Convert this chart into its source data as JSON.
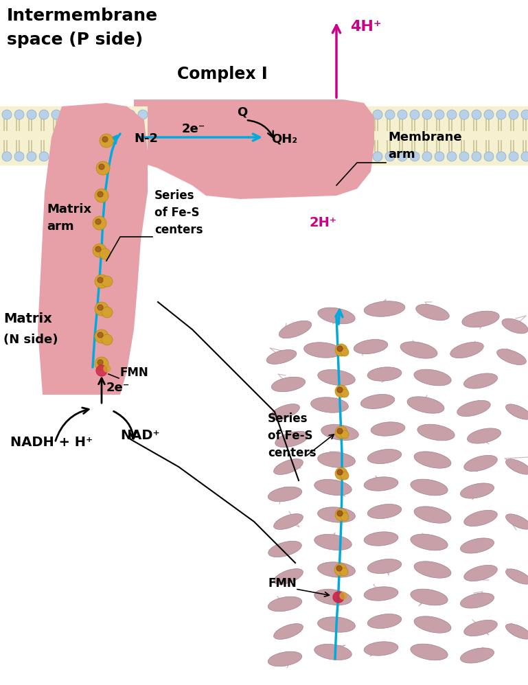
{
  "bg_color": "#ffffff",
  "membrane_color": "#e8d5a0",
  "membrane_bg": "#f5f0d0",
  "complex_fill": "#e8a0a8",
  "complex_stroke": "#c07880",
  "phospholipid_head_color": "#b8d0e8",
  "blue_arrow_color": "#00aadd",
  "magenta_arrow_color": "#cc0088",
  "black_arrow_color": "#111111",
  "fe_s_color_outer": "#d4a030",
  "fe_s_color_inner": "#c8602020",
  "fmn_color": "#cc2244",
  "text_intermembrane": "Intermembrane\nspace (P side)",
  "text_complex": "Complex I",
  "text_matrix_arm": "Matrix\narm",
  "text_matrix": "Matrix\n(N side)",
  "text_membrane_arm": "Membrane\narm",
  "text_fe_s": "Series\nof Fe-S\ncenters",
  "text_fe_s2": "Series\nof Fe-S\ncenters",
  "text_fmn": "FMN",
  "text_fmn2": "FMN",
  "text_n2": "N-2",
  "text_2eminus": "2e⁻",
  "text_2eminus2": "2e⁻",
  "text_q": "Q",
  "text_qh2": "QH₂",
  "text_4h": "4H⁺",
  "text_2h": "2H⁺",
  "text_nadh": "NADH + H⁺",
  "text_nad": "NAD⁺",
  "protein_color": "#c8a0a8"
}
